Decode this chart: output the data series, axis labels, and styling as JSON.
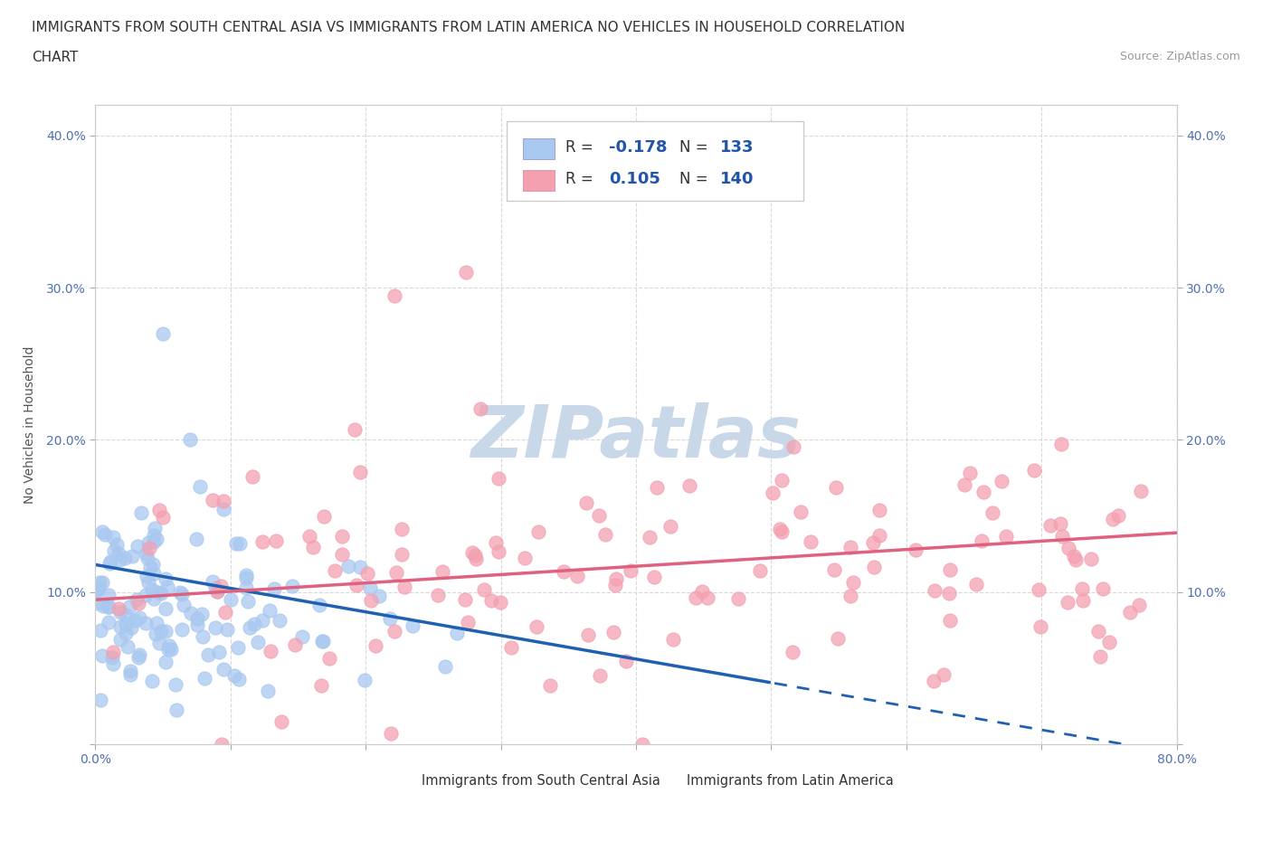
{
  "title_line1": "IMMIGRANTS FROM SOUTH CENTRAL ASIA VS IMMIGRANTS FROM LATIN AMERICA NO VEHICLES IN HOUSEHOLD CORRELATION",
  "title_line2": "CHART",
  "source": "Source: ZipAtlas.com",
  "ylabel": "No Vehicles in Household",
  "xlim": [
    0.0,
    0.8
  ],
  "ylim": [
    0.0,
    0.42
  ],
  "xticks": [
    0.0,
    0.1,
    0.2,
    0.3,
    0.4,
    0.5,
    0.6,
    0.7,
    0.8
  ],
  "xticklabels": [
    "0.0%",
    "",
    "",
    "",
    "",
    "",
    "",
    "",
    "80.0%"
  ],
  "yticks": [
    0.0,
    0.1,
    0.2,
    0.3,
    0.4
  ],
  "yticklabels": [
    "",
    "10.0%",
    "20.0%",
    "30.0%",
    "40.0%"
  ],
  "series1_color": "#a8c8f0",
  "series2_color": "#f4a0b0",
  "series1_label": "Immigrants from South Central Asia",
  "series2_label": "Immigrants from Latin America",
  "series1_R": -0.178,
  "series1_N": 133,
  "series2_R": 0.105,
  "series2_N": 140,
  "line1_color": "#2060b0",
  "line2_color": "#e06080",
  "line1_intercept": 0.118,
  "line1_slope": -0.155,
  "line2_intercept": 0.095,
  "line2_slope": 0.055,
  "line1_solid_end": 0.5,
  "watermark": "ZIPatlas",
  "watermark_color": "#c8d8e8",
  "background_color": "#ffffff",
  "grid_color": "#d8d8d8",
  "title_fontsize": 11,
  "axis_label_fontsize": 10,
  "tick_fontsize": 10,
  "tick_color": "#5070b0"
}
